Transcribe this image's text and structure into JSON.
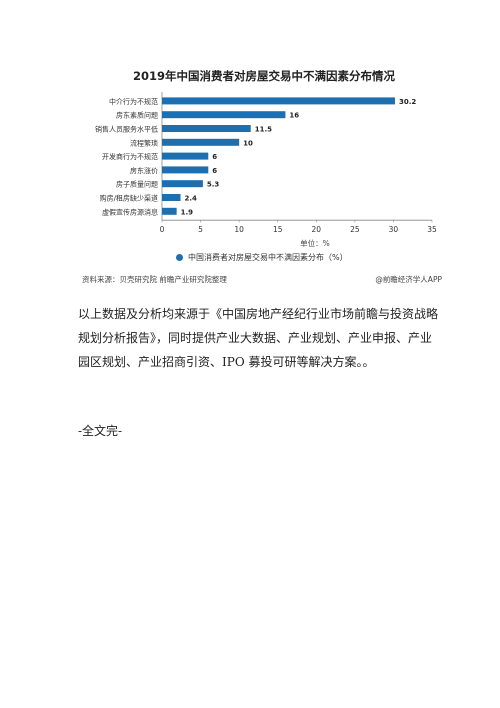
{
  "figure": {
    "source": "资料来源：贝壳研究院 前瞻产业研究院整理",
    "credit": "@前瞻经济学人APP"
  },
  "chart_data": {
    "type": "bar",
    "orientation": "horizontal",
    "title": "2019年中国消费者对房屋交易中不满因素分布情况",
    "categories": [
      "中介行为不规范",
      "房东素质问题",
      "销售人员服务水平低",
      "流程繁琐",
      "开发商行为不规范",
      "房东涨价",
      "房子质量问题",
      "购房/租房缺少渠道",
      "虚假宣传房源消息"
    ],
    "values": [
      30.2,
      16,
      11.5,
      10,
      6,
      6,
      5.3,
      2.4,
      1.9
    ],
    "value_labels": [
      "30.2",
      "16",
      "11.5",
      "10",
      "6",
      "6",
      "5.3",
      "2.4",
      "1.9"
    ],
    "xlim": [
      0,
      35
    ],
    "xticks": [
      "0",
      "5",
      "10",
      "15",
      "20",
      "25",
      "30",
      "35"
    ],
    "xlabel": "单位：%",
    "legend": "中国消费者对房屋交易中不满因素分布（%）",
    "legend_position": "bottom",
    "grid": false,
    "bar_color": "#1e6fb0"
  },
  "body": {
    "paragraph": "以上数据及分析均来源于《中国房地产经纪行业市场前瞻与投资战略规划分析报告》，同时提供产业大数据、产业规划、产业申报、产业园区规划、产业招商引资、IPO 募投可研等解决方案。。",
    "end_mark": "-全文完-"
  }
}
